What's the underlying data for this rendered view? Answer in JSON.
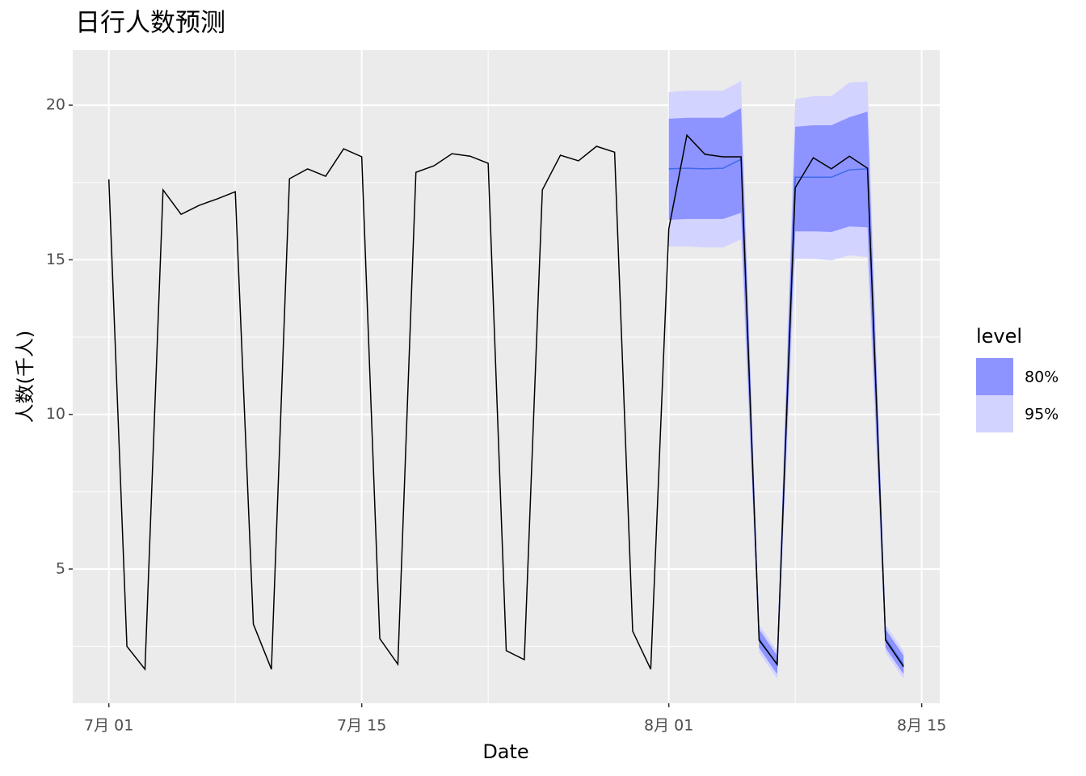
{
  "chart_data": {
    "type": "forecast",
    "title": "日行人数预测",
    "x_label": "Date",
    "y_label": "人数(千人)",
    "legend_title": "level",
    "x": [
      "07-01",
      "07-02",
      "07-03",
      "07-04",
      "07-05",
      "07-06",
      "07-07",
      "07-08",
      "07-09",
      "07-10",
      "07-11",
      "07-12",
      "07-13",
      "07-14",
      "07-15",
      "07-16",
      "07-17",
      "07-18",
      "07-19",
      "07-20",
      "07-21",
      "07-22",
      "07-23",
      "07-24",
      "07-25",
      "07-26",
      "07-27",
      "07-28",
      "07-29",
      "07-30",
      "07-31",
      "08-01",
      "08-02",
      "08-03",
      "08-04",
      "08-05",
      "08-06",
      "08-07",
      "08-08",
      "08-09",
      "08-10",
      "08-11",
      "08-12",
      "08-13",
      "08-14"
    ],
    "values": [
      17.6,
      2.5,
      1.76,
      17.26,
      16.47,
      16.76,
      16.97,
      17.2,
      3.22,
      1.76,
      17.62,
      17.94,
      17.7,
      18.59,
      18.33,
      2.75,
      1.92,
      17.83,
      18.04,
      18.43,
      18.35,
      18.12,
      2.36,
      2.07,
      17.26,
      18.38,
      18.2,
      18.67,
      18.48,
      2.99,
      1.76,
      16.0,
      19.03,
      18.41,
      18.33,
      18.33,
      2.7,
      1.92,
      17.33,
      18.3,
      17.94,
      18.35,
      17.96,
      2.7,
      1.84
    ],
    "color": "#000000",
    "forecast_x": [
      "08-01",
      "08-02",
      "08-03",
      "08-04",
      "08-05",
      "08-06",
      "08-07",
      "08-08",
      "08-09",
      "08-10",
      "08-11",
      "08-12",
      "08-13",
      "08-14"
    ],
    "forecast_mean": [
      17.94,
      17.96,
      17.94,
      17.96,
      18.25,
      2.75,
      1.9,
      17.67,
      17.67,
      17.67,
      17.91,
      17.94,
      2.75,
      1.9
    ],
    "forecast_color": "#3f6ae8",
    "intervals": [
      {
        "name": "95%",
        "color": "#d3d3ff",
        "lower": [
          15.43,
          15.43,
          15.4,
          15.4,
          15.66,
          2.3,
          1.45,
          15.03,
          15.03,
          14.98,
          15.14,
          15.09,
          2.3,
          1.45
        ],
        "upper": [
          20.42,
          20.47,
          20.47,
          20.47,
          20.78,
          3.2,
          2.35,
          20.2,
          20.29,
          20.29,
          20.73,
          20.76,
          3.2,
          2.35
        ]
      },
      {
        "name": "80%",
        "color": "#8d93ff",
        "lower": [
          16.29,
          16.32,
          16.32,
          16.32,
          16.52,
          2.45,
          1.6,
          15.92,
          15.92,
          15.9,
          16.08,
          16.05,
          2.45,
          1.6
        ],
        "upper": [
          19.56,
          19.59,
          19.59,
          19.59,
          19.9,
          3.05,
          2.2,
          19.3,
          19.35,
          19.35,
          19.61,
          19.79,
          3.05,
          2.2
        ]
      }
    ],
    "xlim": [
      "06-29",
      "08-16"
    ],
    "xticks": [
      {
        "value": "07-01",
        "label": "7月 01"
      },
      {
        "value": "07-15",
        "label": "7月 15"
      },
      {
        "value": "08-01",
        "label": "8月 01"
      },
      {
        "value": "08-15",
        "label": "8月 15"
      }
    ],
    "minor_xticks": [
      "07-08",
      "07-22",
      "08-08"
    ],
    "ylim": [
      0.66,
      21.78
    ],
    "yticks": [
      5,
      10,
      15,
      20
    ],
    "minor_yticks": [
      2.5,
      7.5,
      12.5,
      17.5
    ],
    "grid": true
  }
}
